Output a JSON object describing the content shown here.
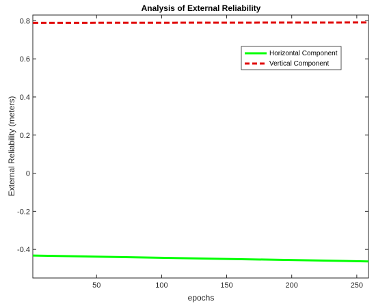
{
  "chart_data": {
    "type": "line",
    "title": "Analysis of External Reliability",
    "xlabel": "epochs",
    "ylabel": "External Reliability (meters)",
    "xlim": [
      1,
      259
    ],
    "ylim": [
      -0.55,
      0.83
    ],
    "x_ticks": [
      50,
      100,
      150,
      200,
      250
    ],
    "y_ticks": [
      -0.4,
      -0.2,
      0,
      0.2,
      0.4,
      0.6,
      0.8
    ],
    "x_tick_labels": [
      "50",
      "100",
      "150",
      "200",
      "250"
    ],
    "y_tick_labels": [
      "-0.4",
      "-0.2",
      "0",
      "0.2",
      "0.4",
      "0.6",
      "0.8"
    ],
    "grid": false,
    "legend_position": "top-right",
    "series": [
      {
        "name": "Horizontal Component",
        "color": "#00ff00",
        "style": "solid",
        "x": [
          1,
          259
        ],
        "values": [
          -0.432,
          -0.463
        ]
      },
      {
        "name": "Vertical Component",
        "color": "#e00000",
        "style": "dashed",
        "x": [
          1,
          259
        ],
        "values": [
          0.789,
          0.791
        ]
      }
    ]
  }
}
